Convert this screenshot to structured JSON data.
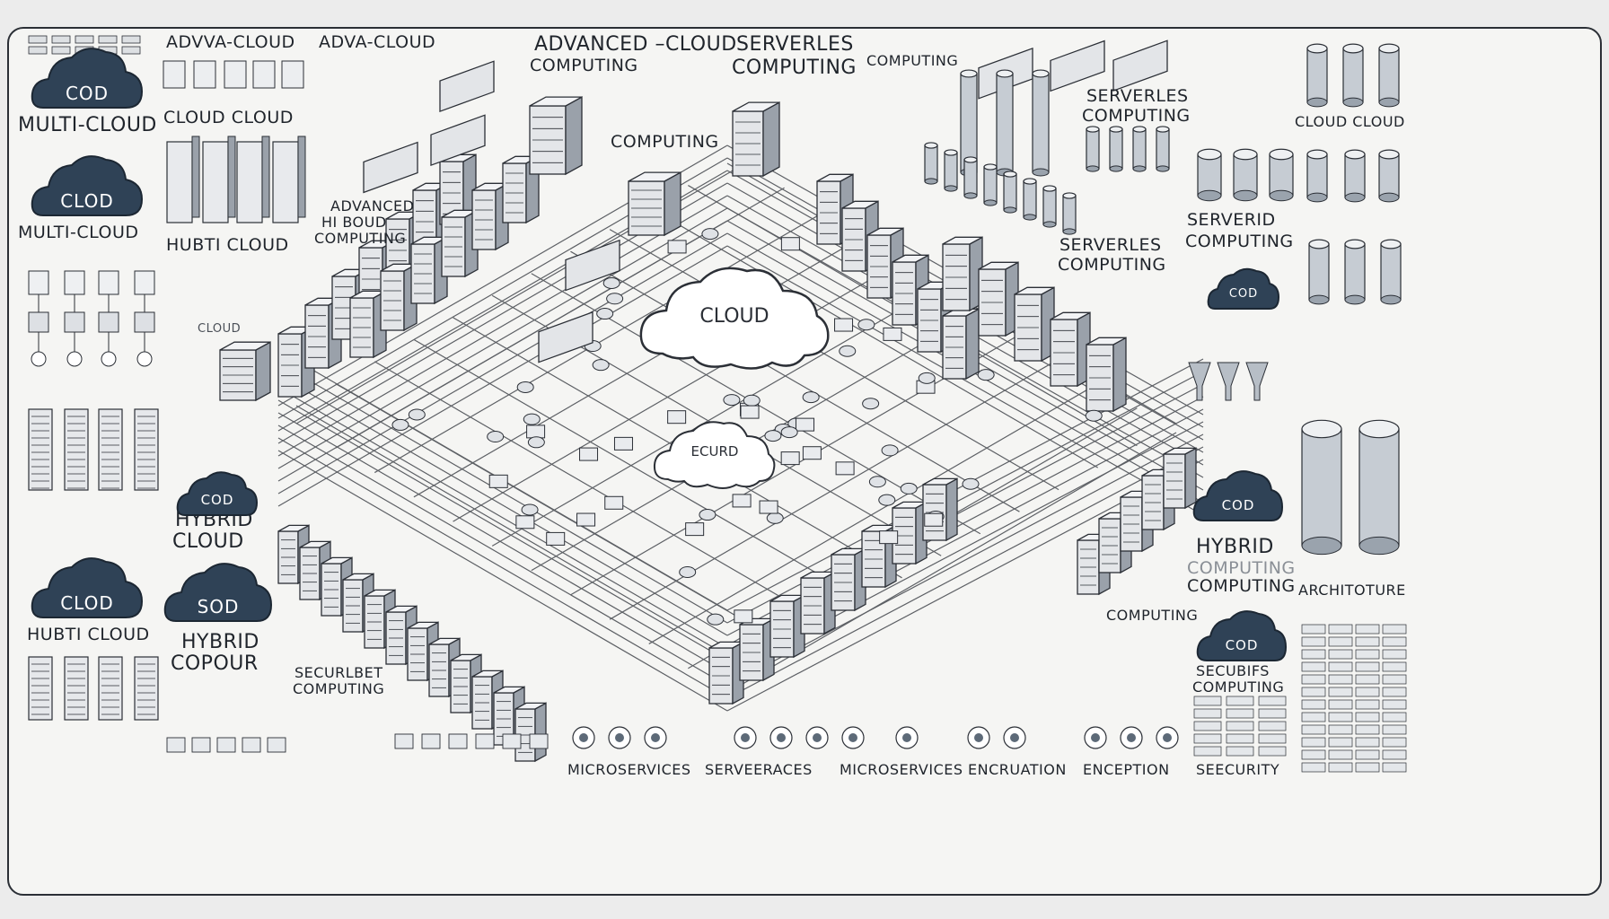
{
  "labels": {
    "top_advanced": "ADVANCED –CLOUD",
    "top_advanced_sub": "COMPUTING",
    "top_serverles": "SERVERLES",
    "top_serverles_sub": "COMPUTING",
    "top_adva_cloud_1": "ADVVA-CLOUD",
    "top_adva_cloud_2": "ADVA-CLOUD",
    "cloud_cloud_left": "CLOUD CLOUD",
    "cloud_cloud_right": "CLOUD CLOUD",
    "computing_top": "COMPUTING",
    "computing_top_right": "COMPUTING",
    "serverles_right_1": "SERVERLES",
    "serverles_right_1_sub": "COMPUTING",
    "serverid": "SERVERID",
    "serverid_sub": "COMPUTING",
    "serverles_right_2": "SERVERLES",
    "serverles_right_2_sub": "COMPUTING",
    "multi_cloud_1": "MULTI-CLOUD",
    "multi_cloud_2": "MULTI-CLOUD",
    "hybrid_cloud_small": "CLOUD",
    "hubti_cloud_left": "HUBTI CLOUD",
    "advanced_hybrid": "ADVANCED",
    "advanced_hybrid_2": "HI BOUD",
    "advanced_hybrid_3": "COMPUTING",
    "hybrid_cloud_mid": "HYBRID",
    "hybrid_cloud_mid_sub": "CLOUD",
    "hubti_cloud_bottom": "HUBTI CLOUD",
    "hybrid_copour": "HYBRID",
    "hybrid_copour_sub": "COPOUR",
    "securlbet": "SECURLBET",
    "securlbet_sub": "COMPUTING",
    "hybrid_right": "HYBRID",
    "hybrid_right_faded": "COMPUTING",
    "hybrid_right_sub": "COMPUTING",
    "architoture": "ARCHITOTURE",
    "computing_bottom_right": "COMPUTING",
    "secubifs": "SECUBIFS",
    "secubifs_sub": "COMPUTING",
    "center_cloud": "CLOUD",
    "center_ecurd": "ECURD",
    "bottom_1": "MICROSERVICES",
    "bottom_2": "SERVEERACES",
    "bottom_3": "MICROSERVICES",
    "bottom_4": "ENCRUATION",
    "bottom_5": "ENCEPTION",
    "bottom_6": "SEECURITY"
  },
  "badges": {
    "b1": "COD",
    "b2": "CLOD",
    "b3": "COD",
    "b4": "CLOD",
    "b5": "SOD",
    "b6": "COD",
    "b7": "COD",
    "b8": "COD"
  },
  "colors": {
    "ink": "#2b2f36",
    "badge": "#2f4256",
    "server_light": "#e4e6e9",
    "server_dark": "#9aa1aa",
    "paper": "#f5f5f3"
  }
}
